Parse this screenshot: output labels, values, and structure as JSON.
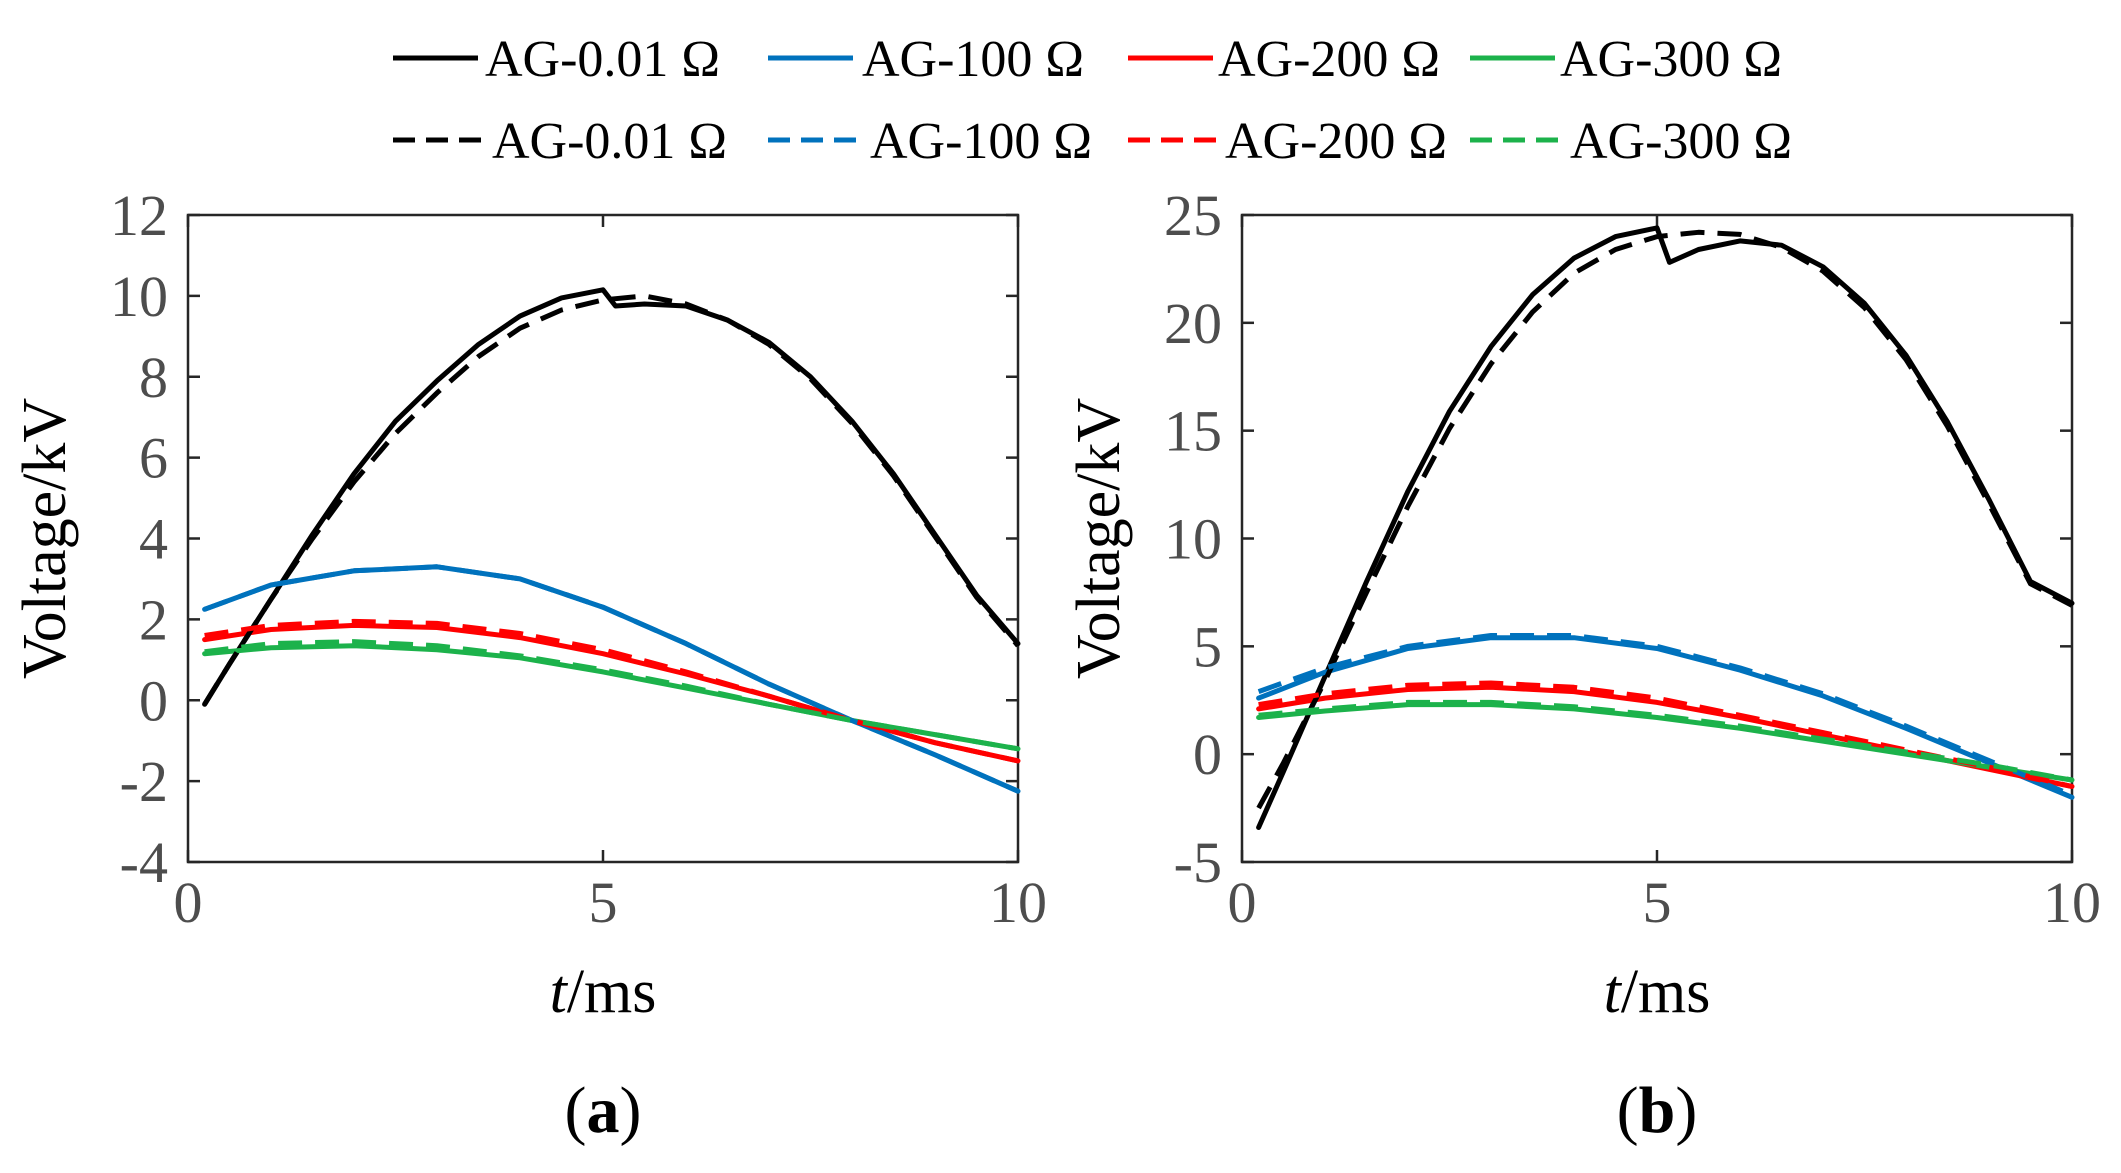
{
  "legend": {
    "rows": [
      [
        {
          "label": "AG-0.01 Ω",
          "color": "#000000",
          "dashed": false
        },
        {
          "label": "AG-100 Ω",
          "color": "#0072BD",
          "dashed": false
        },
        {
          "label": "AG-200 Ω",
          "color": "#FF0000",
          "dashed": false
        },
        {
          "label": "AG-300 Ω",
          "color": "#1CB24B",
          "dashed": false
        }
      ],
      [
        {
          "label": "AG-0.01 Ω",
          "color": "#000000",
          "dashed": true
        },
        {
          "label": "AG-100 Ω",
          "color": "#0072BD",
          "dashed": true
        },
        {
          "label": "AG-200 Ω",
          "color": "#FF0000",
          "dashed": true
        },
        {
          "label": "AG-300 Ω",
          "color": "#1CB24B",
          "dashed": true
        }
      ]
    ]
  },
  "chart_data": [
    {
      "type": "line",
      "panel_label": "a",
      "xlabel_italic": "t",
      "xlabel_rest": "/ms",
      "ylabel": "Voltage/kV",
      "xlim": [
        0,
        10
      ],
      "ylim": [
        -4,
        12
      ],
      "xticks": [
        0,
        5,
        10
      ],
      "yticks": [
        -4,
        -2,
        0,
        2,
        4,
        6,
        8,
        10,
        12
      ],
      "series": [
        {
          "name": "AG-0.01 Ω",
          "color": "#000000",
          "dashed": false,
          "x": [
            0.2,
            0.5,
            1,
            1.5,
            2,
            2.5,
            3,
            3.5,
            4,
            4.5,
            5,
            5.15,
            5.5,
            6,
            6.5,
            7,
            7.5,
            8,
            8.5,
            9,
            9.5,
            10
          ],
          "y": [
            -0.1,
            0.9,
            2.5,
            4.1,
            5.6,
            6.9,
            7.9,
            8.8,
            9.5,
            9.95,
            10.15,
            9.75,
            9.8,
            9.75,
            9.4,
            8.85,
            8.0,
            6.9,
            5.6,
            4.1,
            2.6,
            1.4
          ]
        },
        {
          "name": "AG-0.01 Ω",
          "color": "#000000",
          "dashed": true,
          "x": [
            0.2,
            0.5,
            1,
            1.5,
            2,
            2.5,
            3,
            3.5,
            4,
            4.5,
            5,
            5.5,
            6,
            6.5,
            7,
            7.5,
            8,
            8.5,
            9,
            9.5,
            10
          ],
          "y": [
            -0.1,
            0.9,
            2.5,
            4.0,
            5.4,
            6.6,
            7.6,
            8.5,
            9.2,
            9.65,
            9.9,
            10.0,
            9.8,
            9.4,
            8.8,
            7.95,
            6.85,
            5.55,
            4.05,
            2.55,
            1.35
          ]
        },
        {
          "name": "AG-100 Ω",
          "color": "#0072BD",
          "dashed": false,
          "x": [
            0.2,
            1,
            2,
            3,
            4,
            5,
            6,
            7,
            8,
            9,
            10
          ],
          "y": [
            2.25,
            2.85,
            3.2,
            3.3,
            3.0,
            2.3,
            1.4,
            0.4,
            -0.5,
            -1.35,
            -2.25
          ]
        },
        {
          "name": "AG-100 Ω",
          "color": "#0072BD",
          "dashed": true,
          "x": [
            0.2,
            1,
            2,
            3,
            4,
            5,
            6,
            7,
            8,
            9,
            10
          ],
          "y": [
            2.25,
            2.85,
            3.2,
            3.3,
            3.0,
            2.3,
            1.4,
            0.4,
            -0.5,
            -1.35,
            -2.25
          ]
        },
        {
          "name": "AG-200 Ω",
          "color": "#FF0000",
          "dashed": false,
          "x": [
            0.2,
            1,
            2,
            3,
            4,
            5,
            6,
            7,
            8,
            9,
            10
          ],
          "y": [
            1.5,
            1.75,
            1.85,
            1.8,
            1.55,
            1.15,
            0.65,
            0.1,
            -0.5,
            -1.05,
            -1.5
          ]
        },
        {
          "name": "AG-200 Ω",
          "color": "#FF0000",
          "dashed": true,
          "x": [
            0.2,
            1,
            2,
            3,
            4,
            5,
            6,
            7,
            8,
            9,
            10
          ],
          "y": [
            1.6,
            1.85,
            1.95,
            1.9,
            1.65,
            1.25,
            0.7,
            0.1,
            -0.5,
            -1.05,
            -1.5
          ]
        },
        {
          "name": "AG-300 Ω",
          "color": "#1CB24B",
          "dashed": false,
          "x": [
            0.2,
            1,
            2,
            3,
            4,
            5,
            6,
            7,
            8,
            9,
            10
          ],
          "y": [
            1.15,
            1.3,
            1.35,
            1.25,
            1.05,
            0.7,
            0.3,
            -0.1,
            -0.5,
            -0.85,
            -1.2
          ]
        },
        {
          "name": "AG-300 Ω",
          "color": "#1CB24B",
          "dashed": true,
          "x": [
            0.2,
            1,
            2,
            3,
            4,
            5,
            6,
            7,
            8,
            9,
            10
          ],
          "y": [
            1.2,
            1.4,
            1.45,
            1.35,
            1.1,
            0.75,
            0.35,
            -0.1,
            -0.5,
            -0.85,
            -1.2
          ]
        }
      ]
    },
    {
      "type": "line",
      "panel_label": "b",
      "xlabel_italic": "t",
      "xlabel_rest": "/ms",
      "ylabel": "Voltage/kV",
      "xlim": [
        0,
        10
      ],
      "ylim": [
        -5,
        25
      ],
      "xticks": [
        0,
        5,
        10
      ],
      "yticks": [
        -5,
        0,
        5,
        10,
        15,
        20,
        25
      ],
      "series": [
        {
          "name": "AG-0.01 Ω",
          "color": "#000000",
          "dashed": false,
          "x": [
            0.2,
            0.5,
            1,
            1.5,
            2,
            2.5,
            3,
            3.5,
            4,
            4.5,
            5,
            5.15,
            5.5,
            6,
            6.5,
            7,
            7.5,
            8,
            8.5,
            9,
            9.5,
            10
          ],
          "y": [
            -3.4,
            -0.8,
            3.6,
            8.0,
            12.2,
            15.9,
            18.9,
            21.3,
            23.0,
            24.0,
            24.4,
            22.8,
            23.4,
            23.8,
            23.6,
            22.6,
            20.9,
            18.5,
            15.4,
            11.8,
            8.0,
            7.0
          ]
        },
        {
          "name": "AG-0.01 Ω",
          "color": "#000000",
          "dashed": true,
          "x": [
            0.2,
            0.5,
            1,
            1.5,
            2,
            2.5,
            3,
            3.5,
            4,
            4.5,
            5,
            5.5,
            6,
            6.5,
            7,
            7.5,
            8,
            8.5,
            9,
            9.5,
            10
          ],
          "y": [
            -2.5,
            -0.4,
            3.4,
            7.5,
            11.5,
            15.1,
            18.1,
            20.5,
            22.3,
            23.4,
            24.0,
            24.2,
            24.1,
            23.5,
            22.4,
            20.7,
            18.3,
            15.2,
            11.6,
            7.9,
            6.9
          ]
        },
        {
          "name": "AG-100 Ω",
          "color": "#0072BD",
          "dashed": false,
          "x": [
            0.2,
            1,
            2,
            3,
            4,
            5,
            6,
            7,
            8,
            9,
            10
          ],
          "y": [
            2.6,
            3.8,
            4.9,
            5.4,
            5.4,
            4.9,
            3.9,
            2.7,
            1.2,
            -0.4,
            -2.0
          ]
        },
        {
          "name": "AG-100 Ω",
          "color": "#0072BD",
          "dashed": true,
          "x": [
            0.2,
            1,
            2,
            3,
            4,
            5,
            6,
            7,
            8,
            9,
            10
          ],
          "y": [
            2.9,
            4.0,
            5.0,
            5.5,
            5.5,
            5.0,
            4.0,
            2.8,
            1.3,
            -0.3,
            -1.9
          ]
        },
        {
          "name": "AG-200 Ω",
          "color": "#FF0000",
          "dashed": false,
          "x": [
            0.2,
            1,
            2,
            3,
            4,
            5,
            6,
            7,
            8,
            9,
            10
          ],
          "y": [
            2.1,
            2.6,
            3.0,
            3.1,
            2.9,
            2.4,
            1.7,
            0.9,
            0.1,
            -0.7,
            -1.5
          ]
        },
        {
          "name": "AG-200 Ω",
          "color": "#FF0000",
          "dashed": true,
          "x": [
            0.2,
            1,
            2,
            3,
            4,
            5,
            6,
            7,
            8,
            9,
            10
          ],
          "y": [
            2.3,
            2.8,
            3.2,
            3.3,
            3.1,
            2.6,
            1.8,
            1.0,
            0.2,
            -0.6,
            -1.5
          ]
        },
        {
          "name": "AG-300 Ω",
          "color": "#1CB24B",
          "dashed": false,
          "x": [
            0.2,
            1,
            2,
            3,
            4,
            5,
            6,
            7,
            8,
            9,
            10
          ],
          "y": [
            1.7,
            2.0,
            2.3,
            2.3,
            2.1,
            1.7,
            1.2,
            0.6,
            0.0,
            -0.6,
            -1.2
          ]
        },
        {
          "name": "AG-300 Ω",
          "color": "#1CB24B",
          "dashed": true,
          "x": [
            0.2,
            1,
            2,
            3,
            4,
            5,
            6,
            7,
            8,
            9,
            10
          ],
          "y": [
            1.8,
            2.1,
            2.4,
            2.4,
            2.2,
            1.8,
            1.3,
            0.7,
            0.1,
            -0.5,
            -1.2
          ]
        }
      ]
    }
  ]
}
